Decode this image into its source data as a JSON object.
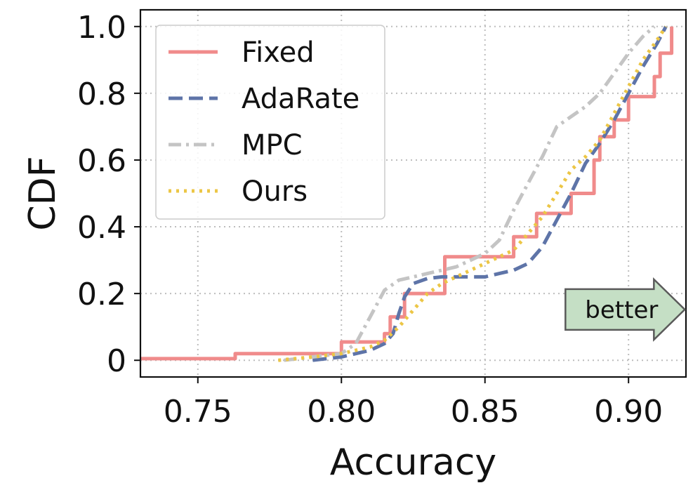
{
  "chart_data": {
    "type": "line",
    "title": "",
    "xlabel": "Accuracy",
    "ylabel": "CDF",
    "xlim": [
      0.73,
      0.92
    ],
    "ylim": [
      -0.05,
      1.05
    ],
    "xticks": [
      0.75,
      0.8,
      0.85,
      0.9
    ],
    "xtick_labels": [
      "0.75",
      "0.80",
      "0.85",
      "0.90"
    ],
    "yticks": [
      0,
      0.2,
      0.4,
      0.6,
      0.8,
      1.0
    ],
    "ytick_labels": [
      "0",
      "0.2",
      "0.4",
      "0.6",
      "0.8",
      "1.0"
    ],
    "grid": true,
    "legend_position": "top-left",
    "annotation": {
      "text": "better",
      "x": 0.879,
      "y": 0.15,
      "shape": "right-arrow",
      "color": "#c5dfc5"
    },
    "series": [
      {
        "name": "Fixed",
        "color": "#f08b8b",
        "dash": "solid",
        "step": true,
        "x": [
          0.73,
          0.763,
          0.8,
          0.815,
          0.817,
          0.822,
          0.836,
          0.86,
          0.868,
          0.88,
          0.888,
          0.89,
          0.895,
          0.9,
          0.909,
          0.911,
          0.915
        ],
        "y": [
          0.005,
          0.02,
          0.055,
          0.08,
          0.13,
          0.2,
          0.31,
          0.37,
          0.44,
          0.5,
          0.6,
          0.67,
          0.72,
          0.79,
          0.85,
          0.92,
          1.0
        ]
      },
      {
        "name": "AdaRate",
        "color": "#5e74a8",
        "dash": "dashed",
        "step": false,
        "x": [
          0.79,
          0.8,
          0.81,
          0.815,
          0.818,
          0.82,
          0.822,
          0.825,
          0.83,
          0.835,
          0.84,
          0.85,
          0.855,
          0.86,
          0.865,
          0.87,
          0.875,
          0.88,
          0.885,
          0.89,
          0.895,
          0.9,
          0.905,
          0.91,
          0.913
        ],
        "y": [
          0.0,
          0.01,
          0.03,
          0.05,
          0.08,
          0.14,
          0.19,
          0.23,
          0.245,
          0.25,
          0.25,
          0.25,
          0.26,
          0.27,
          0.29,
          0.34,
          0.42,
          0.5,
          0.59,
          0.65,
          0.72,
          0.8,
          0.88,
          0.95,
          1.0
        ]
      },
      {
        "name": "MPC",
        "color": "#c4c4c4",
        "dash": "dashdot",
        "step": false,
        "x": [
          0.78,
          0.79,
          0.8,
          0.805,
          0.81,
          0.815,
          0.82,
          0.825,
          0.83,
          0.835,
          0.84,
          0.845,
          0.85,
          0.855,
          0.86,
          0.865,
          0.87,
          0.875,
          0.88,
          0.885,
          0.89,
          0.895,
          0.9,
          0.905,
          0.909
        ],
        "y": [
          0.0,
          0.01,
          0.02,
          0.05,
          0.13,
          0.21,
          0.24,
          0.25,
          0.26,
          0.27,
          0.28,
          0.3,
          0.32,
          0.36,
          0.45,
          0.53,
          0.61,
          0.7,
          0.73,
          0.76,
          0.8,
          0.86,
          0.92,
          0.97,
          1.0
        ]
      },
      {
        "name": "Ours",
        "color": "#ecc646",
        "dash": "dotted",
        "step": false,
        "x": [
          0.778,
          0.79,
          0.8,
          0.81,
          0.815,
          0.82,
          0.825,
          0.83,
          0.835,
          0.84,
          0.845,
          0.85,
          0.855,
          0.86,
          0.865,
          0.87,
          0.875,
          0.88,
          0.885,
          0.89,
          0.895,
          0.9,
          0.905,
          0.91,
          0.913
        ],
        "y": [
          0.0,
          0.01,
          0.02,
          0.04,
          0.06,
          0.1,
          0.15,
          0.2,
          0.23,
          0.25,
          0.27,
          0.29,
          0.31,
          0.33,
          0.38,
          0.43,
          0.5,
          0.57,
          0.61,
          0.66,
          0.74,
          0.82,
          0.9,
          0.96,
          1.0
        ]
      }
    ]
  }
}
